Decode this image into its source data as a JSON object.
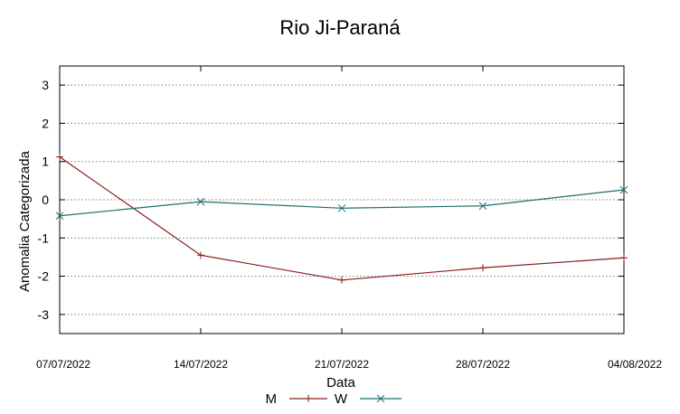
{
  "chart_data": {
    "type": "line",
    "title": "Rio Ji-Paraná",
    "xlabel": "Data",
    "ylabel": "Anomalia Categorizada",
    "categories": [
      "07/07/2022",
      "14/07/2022",
      "21/07/2022",
      "28/07/2022",
      "04/08/2022"
    ],
    "yticks": [
      "3",
      "2",
      "1",
      "0",
      "-1",
      "-2",
      "-3"
    ],
    "ylim": [
      -3.5,
      3.5
    ],
    "grid": true,
    "legend_position": "bottom",
    "series": [
      {
        "name": "M",
        "color": "#8b1a1a",
        "marker": "plus",
        "values": [
          1.12,
          -1.45,
          -2.1,
          -1.78,
          -1.52
        ]
      },
      {
        "name": "W",
        "color": "#1e6e6e",
        "marker": "cross",
        "values": [
          -0.42,
          -0.05,
          -0.22,
          -0.16,
          0.26
        ]
      }
    ]
  }
}
